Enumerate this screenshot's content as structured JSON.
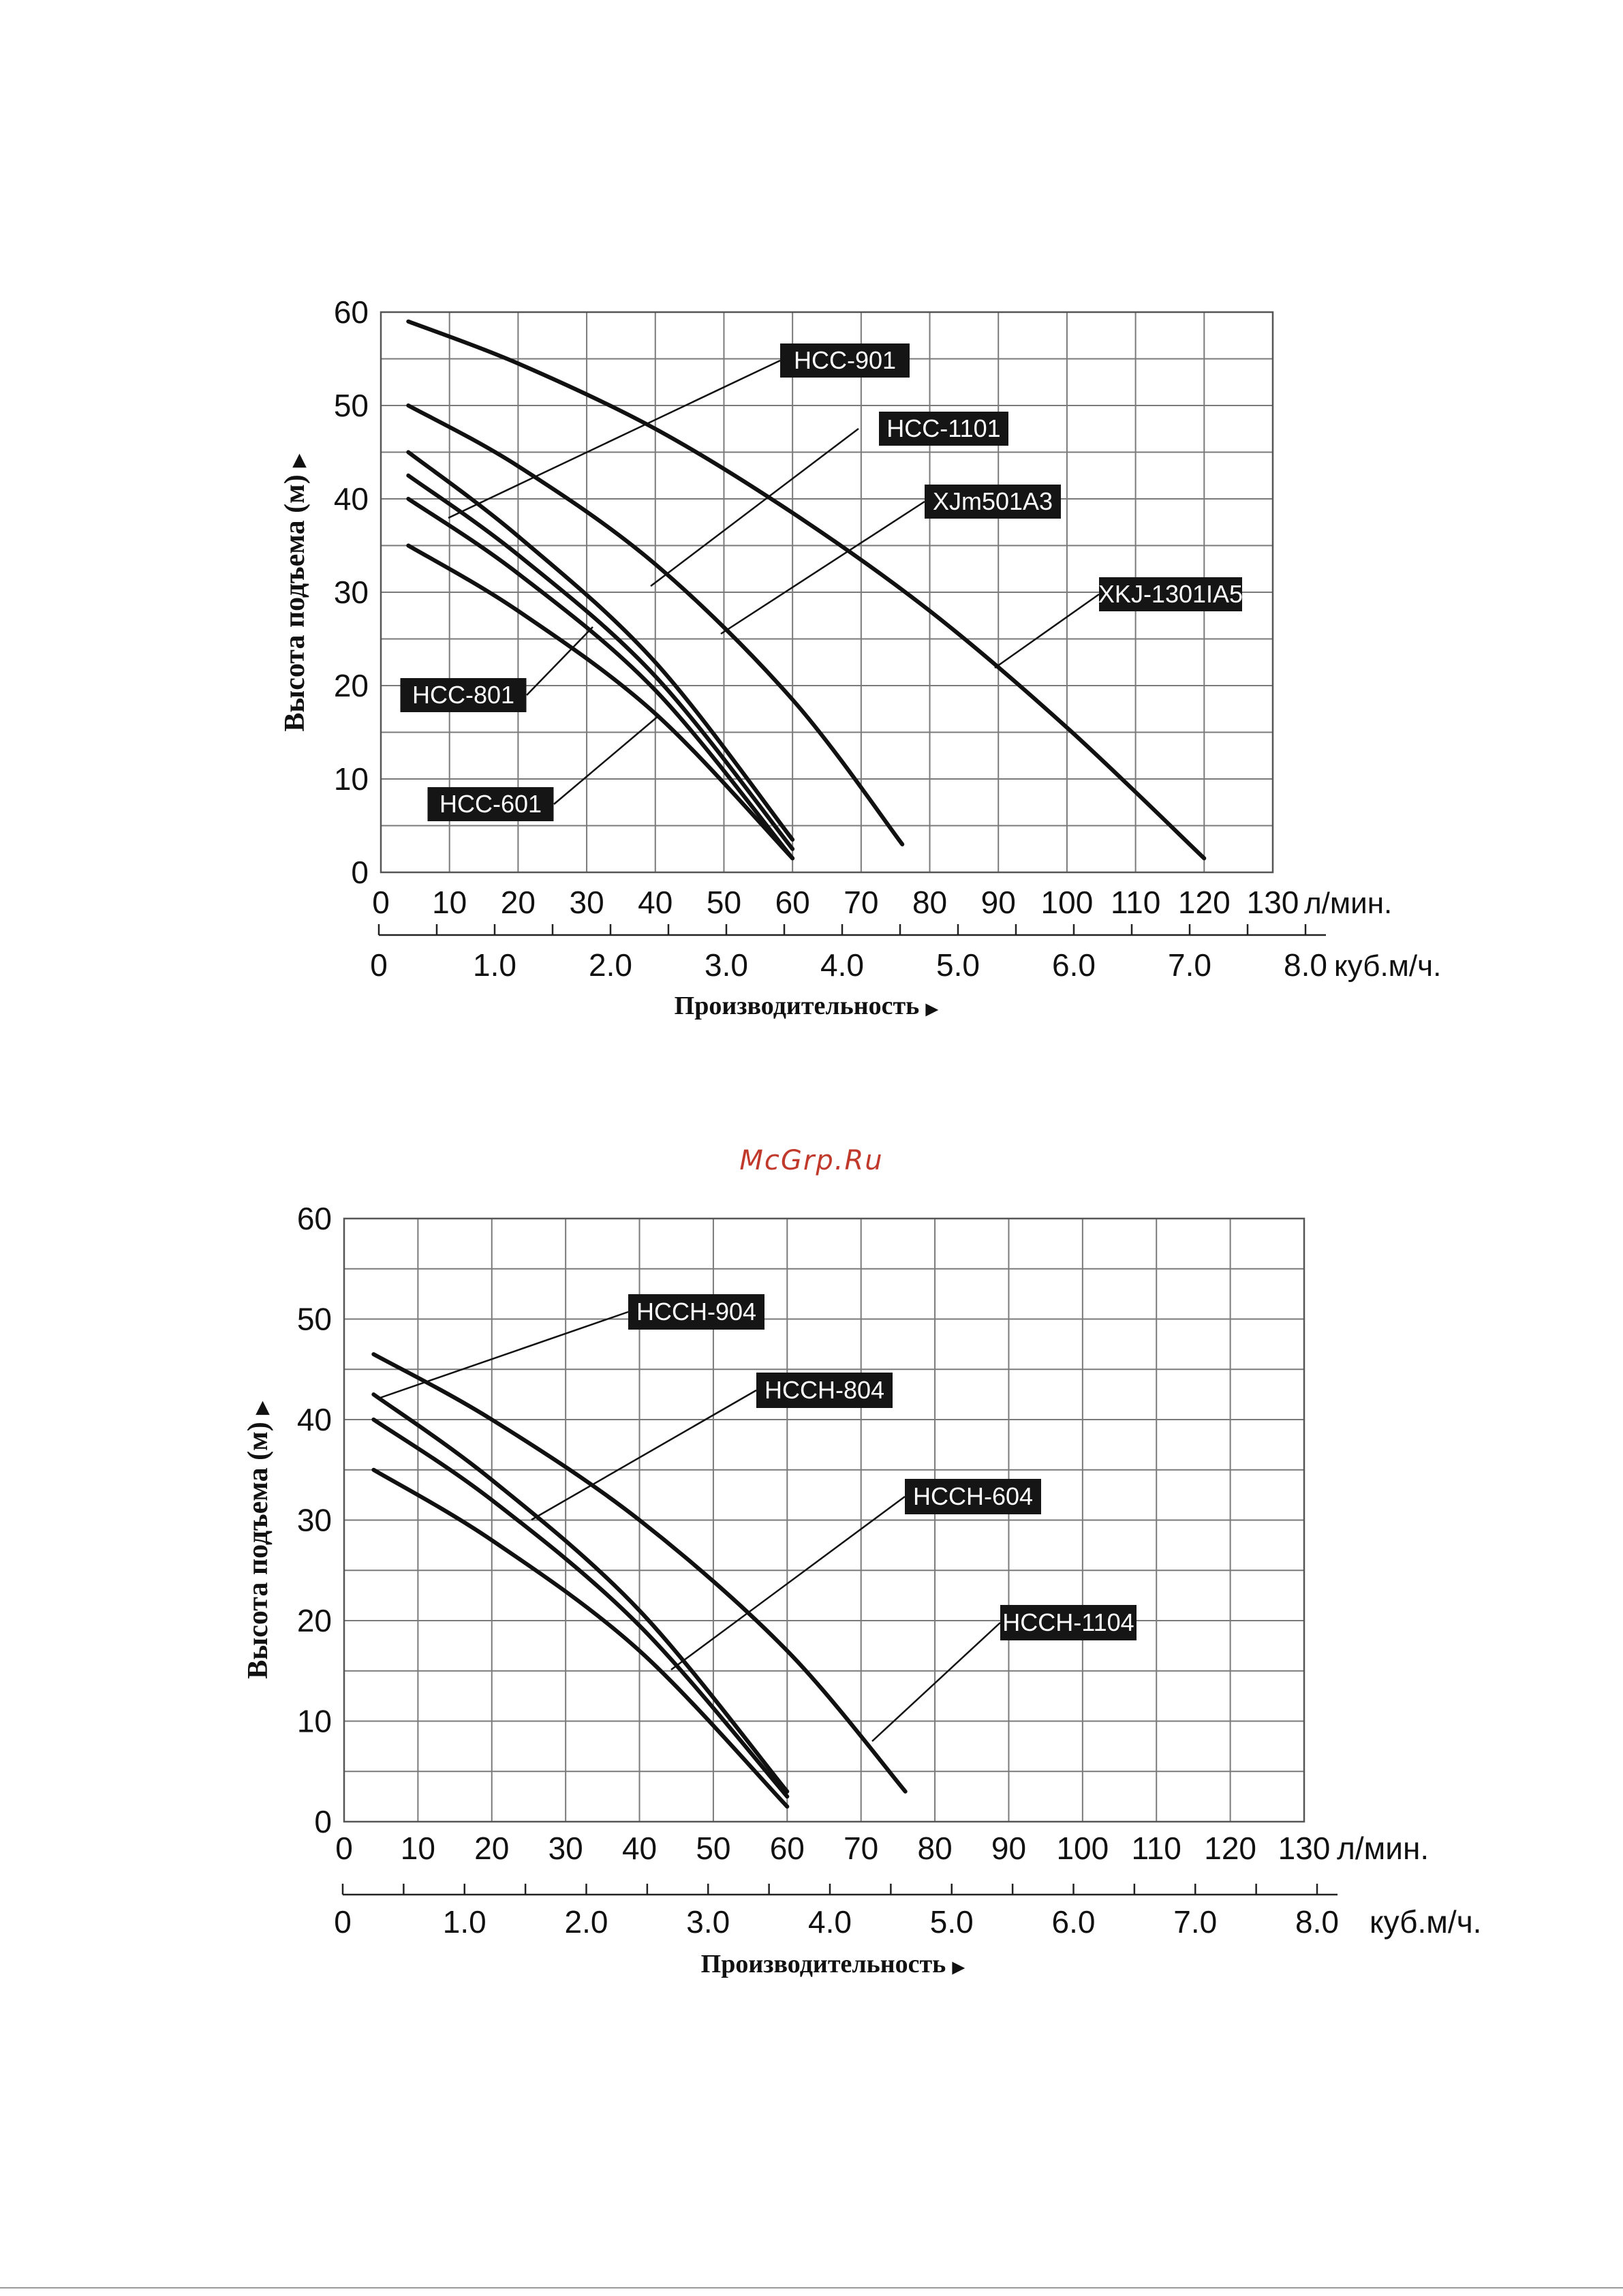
{
  "watermark": "McGrp.Ru",
  "chart_data": [
    {
      "type": "line",
      "title": "",
      "ylabel": "Высота подъема (м)",
      "xlabel": "Производительность",
      "x_unit": "л/мин.",
      "x2_unit": "куб.м/ч.",
      "xlim": [
        0,
        130
      ],
      "ylim": [
        0,
        60
      ],
      "x_ticks": [
        0,
        10,
        20,
        30,
        40,
        50,
        60,
        70,
        80,
        90,
        100,
        110,
        120,
        130
      ],
      "y_ticks": [
        0,
        10,
        20,
        30,
        40,
        50,
        60
      ],
      "x2_ticks": [
        0,
        1.0,
        2.0,
        3.0,
        4.0,
        5.0,
        6.0,
        7.0,
        8.0
      ],
      "x2_tick_labels": [
        "0",
        "1.0",
        "2.0",
        "3.0",
        "4.0",
        "5.0",
        "6.0",
        "7.0",
        "8.0"
      ],
      "grid": true,
      "series": [
        {
          "name": "XKJ-1301IA5",
          "x": [
            4,
            20,
            40,
            60,
            80,
            100,
            120
          ],
          "y": [
            59,
            54.5,
            47.5,
            38.5,
            28,
            15.5,
            1.5
          ]
        },
        {
          "name": "HCC-901",
          "x": [
            4,
            20,
            40,
            60,
            76
          ],
          "y": [
            50,
            43.5,
            33,
            18.5,
            3
          ]
        },
        {
          "name": "HCC-1101",
          "x": [
            4,
            20,
            40,
            60
          ],
          "y": [
            45,
            36,
            22.5,
            3.5
          ]
        },
        {
          "name": "HCC-801",
          "x": [
            4,
            20,
            40,
            60
          ],
          "y": [
            42.5,
            34,
            21,
            2.5
          ]
        },
        {
          "name": "XJm501A3",
          "x": [
            4,
            20,
            40,
            60
          ],
          "y": [
            40,
            32,
            19.5,
            1.5
          ]
        },
        {
          "name": "HCC-601",
          "x": [
            4,
            20,
            40,
            60
          ],
          "y": [
            35,
            28,
            17,
            1.5
          ]
        }
      ],
      "labels": [
        {
          "text": "HCC-901",
          "series": "HCC-901"
        },
        {
          "text": "HCC-1101",
          "series": "HCC-1101"
        },
        {
          "text": "XJm501A3",
          "series": "XJm501A3"
        },
        {
          "text": "XKJ-1301IA5",
          "series": "XKJ-1301IA5"
        },
        {
          "text": "HCC-801",
          "series": "HCC-801"
        },
        {
          "text": "HCC-601",
          "series": "HCC-601"
        }
      ]
    },
    {
      "type": "line",
      "title": "",
      "ylabel": "Высота подъема (м)",
      "xlabel": "Производительность",
      "x_unit": "л/мин.",
      "x2_unit": "куб.м/ч.",
      "xlim": [
        0,
        130
      ],
      "ylim": [
        0,
        60
      ],
      "x_ticks": [
        0,
        10,
        20,
        30,
        40,
        50,
        60,
        70,
        80,
        90,
        100,
        110,
        120,
        130
      ],
      "y_ticks": [
        0,
        10,
        20,
        30,
        40,
        50,
        60
      ],
      "x2_ticks": [
        0,
        1.0,
        2.0,
        3.0,
        4.0,
        5.0,
        6.0,
        7.0,
        8.0
      ],
      "x2_tick_labels": [
        "0",
        "1.0",
        "2.0",
        "3.0",
        "4.0",
        "5.0",
        "6.0",
        "7.0",
        "8.0"
      ],
      "grid": true,
      "series": [
        {
          "name": "HCCH-1104",
          "x": [
            4,
            20,
            40,
            60,
            76
          ],
          "y": [
            46.5,
            40,
            30,
            17,
            3
          ]
        },
        {
          "name": "HCCH-904",
          "x": [
            4,
            20,
            40,
            60
          ],
          "y": [
            42.5,
            34,
            21,
            3
          ]
        },
        {
          "name": "HCCH-804",
          "x": [
            4,
            20,
            40,
            60
          ],
          "y": [
            40,
            32,
            19.5,
            2.5
          ]
        },
        {
          "name": "HCCH-604",
          "x": [
            4,
            20,
            40,
            60
          ],
          "y": [
            35,
            28,
            17,
            1.5
          ]
        }
      ],
      "labels": [
        {
          "text": "HCCH-904",
          "series": "HCCH-904"
        },
        {
          "text": "HCCH-804",
          "series": "HCCH-804"
        },
        {
          "text": "HCCH-604",
          "series": "HCCH-604"
        },
        {
          "text": "HCCH-1104",
          "series": "HCCH-1104"
        }
      ]
    }
  ]
}
